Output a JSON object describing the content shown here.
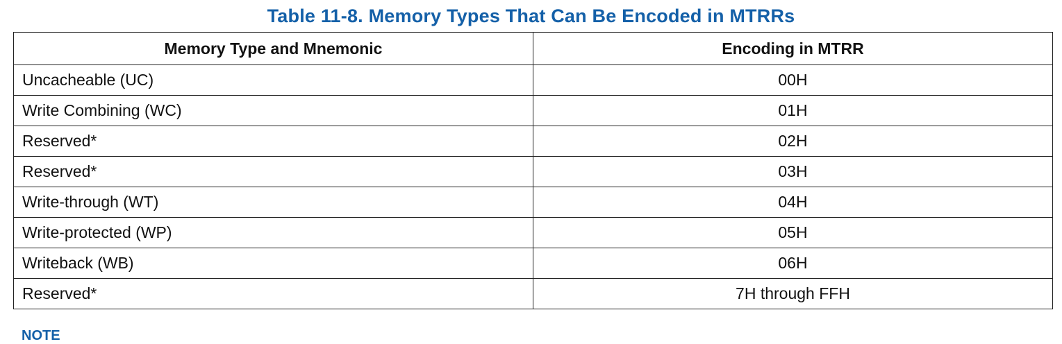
{
  "caption": "Table 11-8.  Memory Types That Can Be Encoded in MTRRs",
  "colors": {
    "caption": "#1460a8",
    "border": "#222222",
    "text": "#111111"
  },
  "table": {
    "headers": [
      "Memory Type and Mnemonic",
      "Encoding in MTRR"
    ],
    "rows": [
      [
        "Uncacheable (UC)",
        "00H"
      ],
      [
        "Write Combining (WC)",
        "01H"
      ],
      [
        "Reserved*",
        "02H"
      ],
      [
        "Reserved*",
        "03H"
      ],
      [
        "Write-through (WT)",
        "04H"
      ],
      [
        "Write-protected (WP)",
        "05H"
      ],
      [
        "Writeback (WB)",
        "06H"
      ],
      [
        "Reserved*",
        "7H through FFH"
      ]
    ]
  },
  "notes_heading": "NOTE"
}
